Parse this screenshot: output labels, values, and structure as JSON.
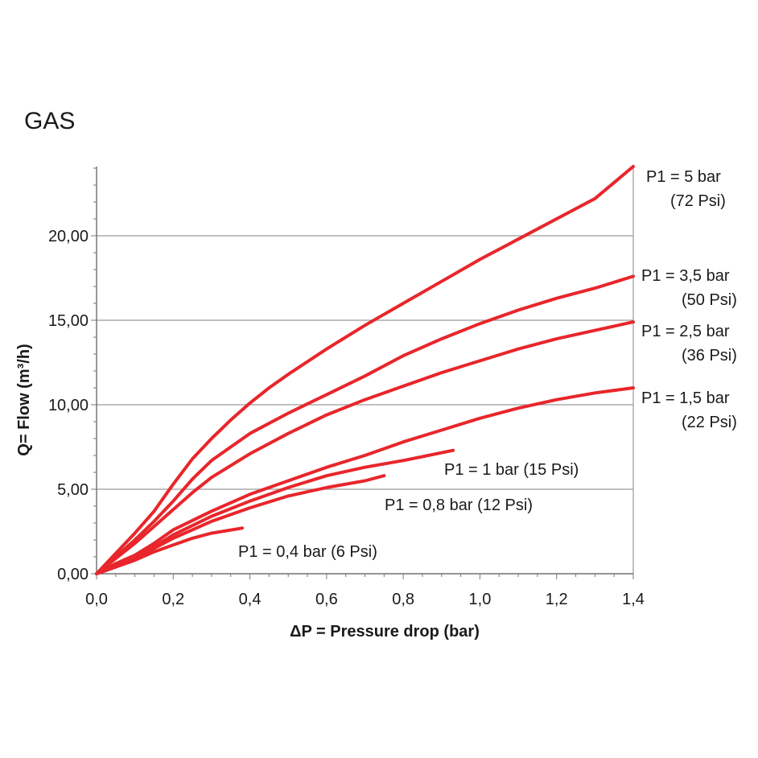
{
  "chart_data": {
    "type": "line",
    "title": "GAS",
    "xlabel": "ΔP = Pressure drop (bar)",
    "ylabel": "Q= Flow  (m³/h)",
    "xlim": [
      0,
      1.4
    ],
    "ylim": [
      0,
      24
    ],
    "x_ticks": [
      0,
      0.2,
      0.4,
      0.6,
      0.8,
      1.0,
      1.2,
      1.4
    ],
    "x_tick_labels": [
      "0,0",
      "0,2",
      "0,4",
      "0,6",
      "0,8",
      "1,0",
      "1,2",
      "1,4"
    ],
    "y_ticks": [
      0,
      5,
      10,
      15,
      20
    ],
    "y_tick_labels": [
      "0,00",
      "5,00",
      "10,00",
      "15,00",
      "20,00"
    ],
    "grid": "horizontal",
    "line_color": "#e8262b",
    "series": [
      {
        "name_lines": [
          "P1 = 5 bar",
          "(72 Psi)"
        ],
        "x": [
          0,
          0.05,
          0.1,
          0.15,
          0.2,
          0.25,
          0.3,
          0.35,
          0.4,
          0.45,
          0.5,
          0.6,
          0.7,
          0.8,
          0.9,
          1.0,
          1.1,
          1.2,
          1.3,
          1.4
        ],
        "y": [
          0,
          1.2,
          2.4,
          3.7,
          5.3,
          6.8,
          8.0,
          9.1,
          10.1,
          11.0,
          11.8,
          13.3,
          14.7,
          16.0,
          17.3,
          18.6,
          19.8,
          21.0,
          22.2,
          24.1
        ]
      },
      {
        "name_lines": [
          "P1 = 3,5 bar",
          "(50 Psi)"
        ],
        "x": [
          0,
          0.05,
          0.1,
          0.15,
          0.2,
          0.25,
          0.3,
          0.4,
          0.5,
          0.6,
          0.7,
          0.8,
          0.9,
          1.0,
          1.1,
          1.2,
          1.3,
          1.4
        ],
        "y": [
          0,
          1.0,
          2.0,
          3.1,
          4.3,
          5.6,
          6.7,
          8.3,
          9.5,
          10.6,
          11.7,
          12.9,
          13.9,
          14.8,
          15.6,
          16.3,
          16.9,
          17.6
        ]
      },
      {
        "name_lines": [
          "P1 = 2,5 bar",
          "(36 Psi)"
        ],
        "x": [
          0,
          0.05,
          0.1,
          0.15,
          0.2,
          0.25,
          0.3,
          0.4,
          0.5,
          0.6,
          0.7,
          0.8,
          0.9,
          1.0,
          1.1,
          1.2,
          1.3,
          1.4
        ],
        "y": [
          0,
          0.9,
          1.8,
          2.8,
          3.8,
          4.8,
          5.7,
          7.1,
          8.3,
          9.4,
          10.3,
          11.1,
          11.9,
          12.6,
          13.3,
          13.9,
          14.4,
          14.9
        ]
      },
      {
        "name_lines": [
          "P1 = 1,5 bar",
          "(22 Psi)"
        ],
        "x": [
          0,
          0.05,
          0.1,
          0.15,
          0.2,
          0.3,
          0.4,
          0.5,
          0.6,
          0.7,
          0.8,
          0.9,
          1.0,
          1.1,
          1.2,
          1.3,
          1.4
        ],
        "y": [
          0,
          0.6,
          1.1,
          1.8,
          2.6,
          3.7,
          4.7,
          5.5,
          6.3,
          7.0,
          7.8,
          8.5,
          9.2,
          9.8,
          10.3,
          10.7,
          11.0
        ]
      },
      {
        "name_lines": [
          "P1 = 1 bar (15 Psi)"
        ],
        "x": [
          0,
          0.05,
          0.1,
          0.15,
          0.2,
          0.3,
          0.4,
          0.5,
          0.6,
          0.7,
          0.8,
          0.93
        ],
        "y": [
          0,
          0.5,
          1.0,
          1.6,
          2.3,
          3.4,
          4.3,
          5.1,
          5.8,
          6.3,
          6.7,
          7.3
        ]
      },
      {
        "name_lines": [
          "P1 = 0,8 bar (12 Psi)"
        ],
        "x": [
          0,
          0.05,
          0.1,
          0.15,
          0.2,
          0.3,
          0.4,
          0.5,
          0.6,
          0.7,
          0.75
        ],
        "y": [
          0,
          0.4,
          0.9,
          1.5,
          2.1,
          3.1,
          3.9,
          4.6,
          5.1,
          5.5,
          5.8
        ]
      },
      {
        "name_lines": [
          "P1 = 0,4 bar (6 Psi)"
        ],
        "x": [
          0,
          0.05,
          0.1,
          0.15,
          0.2,
          0.25,
          0.3,
          0.38
        ],
        "y": [
          0,
          0.4,
          0.8,
          1.3,
          1.7,
          2.1,
          2.4,
          2.7
        ]
      }
    ]
  }
}
